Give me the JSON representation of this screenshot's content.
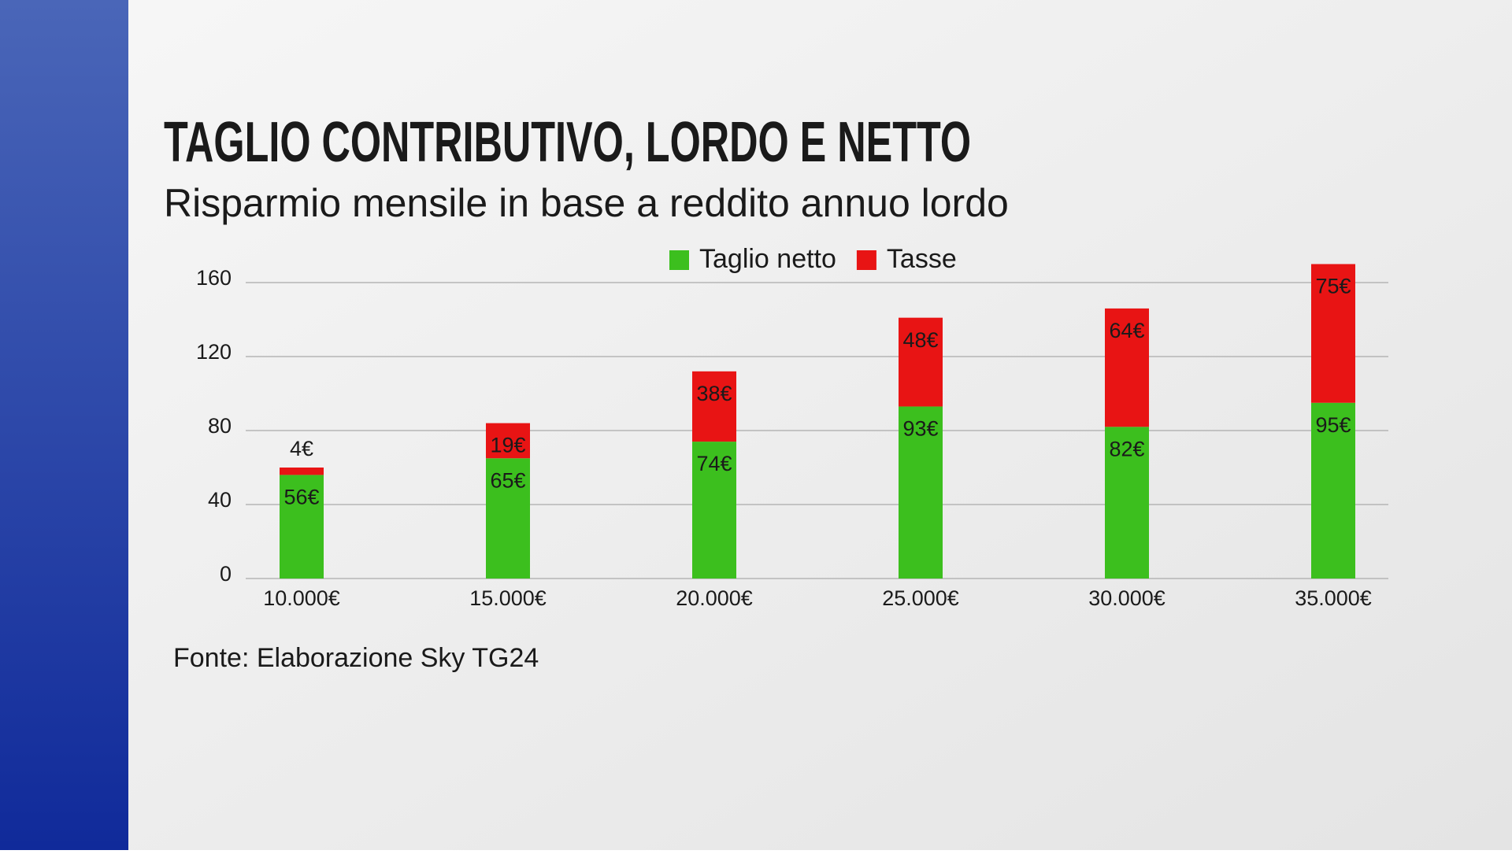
{
  "chart_data": {
    "type": "stacked_bar",
    "title": "TAGLIO CONTRIBUTIVO, LORDO E NETTO",
    "subtitle": "Risparmio mensile in base a reddito annuo lordo",
    "source": "Fonte: Elaborazione Sky TG24",
    "categories": [
      "10.000€",
      "15.000€",
      "20.000€",
      "25.000€",
      "30.000€",
      "35.000€"
    ],
    "series": [
      {
        "name": "Taglio netto",
        "color": "#3cbf1e",
        "values": [
          56,
          65,
          74,
          93,
          82,
          95
        ],
        "value_labels": [
          "56€",
          "65€",
          "74€",
          "93€",
          "82€",
          "95€"
        ]
      },
      {
        "name": "Tasse",
        "color": "#e81414",
        "values": [
          4,
          19,
          38,
          48,
          64,
          75
        ],
        "value_labels": [
          "4€",
          "19€",
          "38€",
          "48€",
          "64€",
          "75€"
        ]
      }
    ],
    "ylim": [
      0,
      180
    ],
    "yticks": [
      0,
      40,
      80,
      120,
      160
    ],
    "grid": true,
    "legend": "top"
  }
}
